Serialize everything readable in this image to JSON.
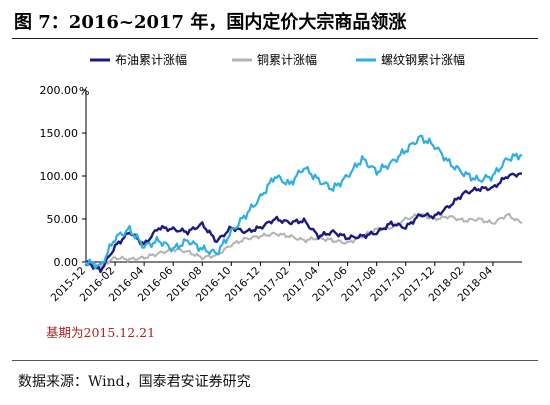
{
  "figure": {
    "title": "图 7：2016~2017 年，国内定价大宗商品领涨",
    "base_note": "基期为2015.12.21",
    "source": "数据来源：Wind，国泰君安证券研究"
  },
  "chart_data": {
    "type": "line",
    "unit_label": "%",
    "ylim": [
      0,
      200
    ],
    "yticks": [
      "0.00",
      "50.00",
      "100.00",
      "150.00",
      "200.00"
    ],
    "xticks": [
      "2015-12",
      "2016-02",
      "2016-04",
      "2016-06",
      "2016-08",
      "2016-10",
      "2016-12",
      "2017-02",
      "2017-04",
      "2017-06",
      "2017-08",
      "2017-10",
      "2017-12",
      "2018-02",
      "2018-04"
    ],
    "x_months": [
      0,
      1,
      2,
      3,
      4,
      5,
      6,
      7,
      8,
      9,
      10,
      11,
      12,
      13,
      14,
      15,
      16,
      17,
      18,
      19,
      20,
      21,
      22,
      23,
      24,
      25,
      26,
      27,
      28,
      29,
      30
    ],
    "x_unit": "months since 2015-12",
    "legend_position": "top-center",
    "grid": false,
    "series": [
      {
        "name": "布油累计涨幅",
        "color": "#1a1a80",
        "values": [
          0,
          -10,
          18,
          35,
          20,
          40,
          38,
          35,
          44,
          24,
          40,
          35,
          40,
          50,
          46,
          48,
          30,
          35,
          28,
          30,
          34,
          45,
          40,
          55,
          53,
          65,
          80,
          85,
          86,
          100,
          103
        ]
      },
      {
        "name": "铜累计涨幅",
        "color": "#b3b3b3",
        "values": [
          0,
          -5,
          5,
          3,
          5,
          10,
          15,
          12,
          5,
          8,
          20,
          27,
          30,
          33,
          30,
          25,
          28,
          25,
          22,
          30,
          38,
          40,
          50,
          55,
          50,
          53,
          48,
          50,
          45,
          55,
          45
        ]
      },
      {
        "name": "螺纹钢累计涨幅",
        "color": "#2faee3",
        "values": [
          0,
          -5,
          28,
          38,
          18,
          25,
          15,
          25,
          15,
          10,
          35,
          55,
          75,
          100,
          90,
          110,
          95,
          85,
          100,
          120,
          105,
          115,
          130,
          145,
          135,
          115,
          103,
          95,
          100,
          120,
          125
        ]
      }
    ]
  }
}
